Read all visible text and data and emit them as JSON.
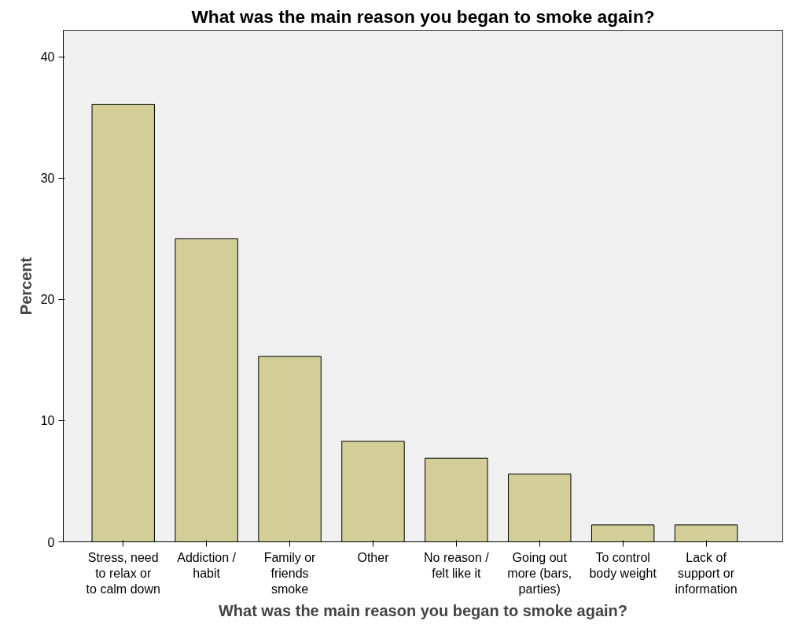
{
  "chart_data": {
    "type": "bar",
    "title": "What was the main reason you began to smoke again?",
    "xlabel": "What was the main reason you began to smoke again?",
    "ylabel": "Percent",
    "categories": [
      "Stress, need to relax or to calm down",
      "Addiction / habit",
      "Family or friends smoke",
      "Other",
      "No reason / felt like it",
      "Going out more (bars, parties)",
      "To control body weight",
      "Lack of support or information"
    ],
    "values": [
      36.1,
      25.0,
      15.3,
      8.3,
      6.9,
      5.6,
      1.4,
      1.4
    ],
    "color": "#d3ce98",
    "ylim": [
      0,
      42.2
    ],
    "yticks": [
      0,
      10,
      20,
      30,
      40
    ],
    "grid": false
  }
}
